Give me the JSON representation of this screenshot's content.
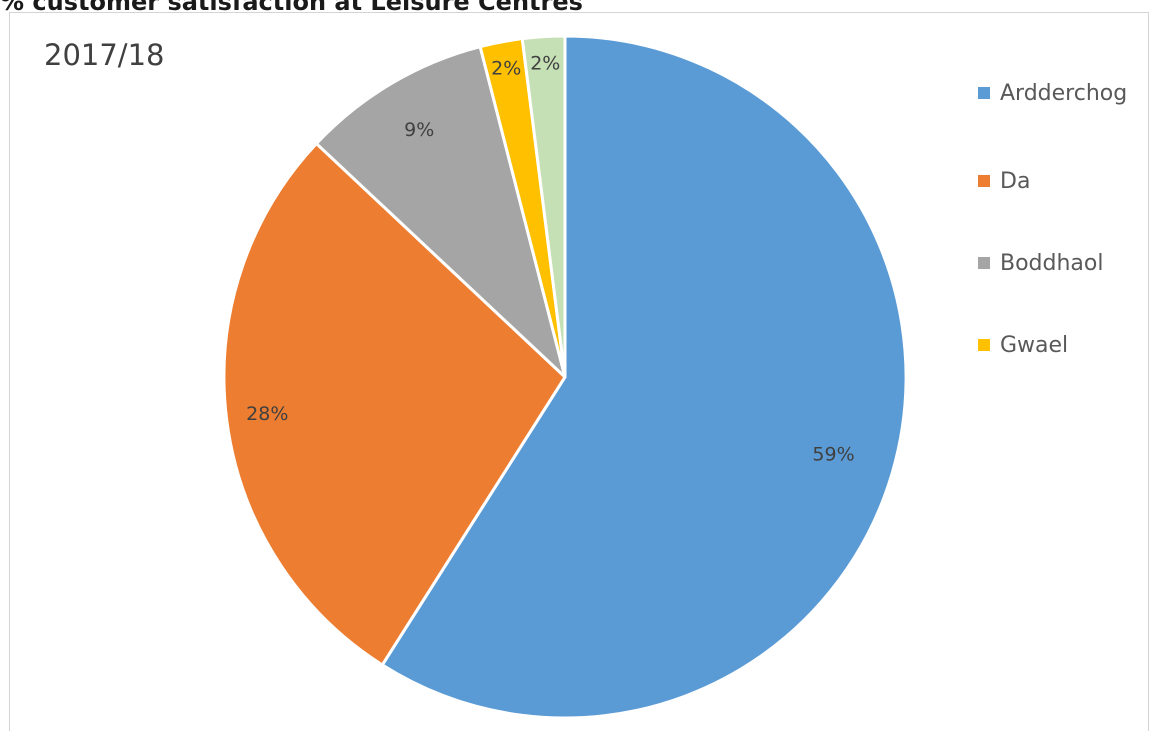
{
  "page": {
    "heading": "% customer satisfaction at Leisure Centres"
  },
  "chart_data": {
    "type": "pie",
    "title": "2017/18",
    "slices": [
      {
        "name": "Ardderchog",
        "value": 59,
        "label": "59%",
        "color": "#5b9bd5"
      },
      {
        "name": "Da",
        "value": 28,
        "label": "28%",
        "color": "#ed7d31"
      },
      {
        "name": "Boddhaol",
        "value": 9,
        "label": "9%",
        "color": "#a5a5a5"
      },
      {
        "name": "Gwael",
        "value": 2,
        "label": "2%",
        "color": "#ffc000"
      },
      {
        "name": "",
        "value": 2,
        "label": "2%",
        "color": "#c5e0b4"
      }
    ],
    "legend": {
      "position": "right",
      "entries": [
        "Ardderchog",
        "Da",
        "Boddhaol",
        "Gwael"
      ]
    }
  }
}
